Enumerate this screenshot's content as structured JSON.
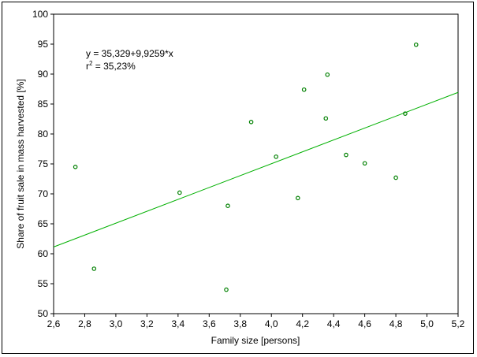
{
  "chart_data": {
    "type": "scatter",
    "xlabel": "Family size [persons]",
    "ylabel": "Share of fruit sale in mass harvested [%]",
    "xlim": [
      2.6,
      5.2
    ],
    "ylim": [
      50,
      100
    ],
    "x_ticks": [
      "2,6",
      "2,8",
      "3,0",
      "3,2",
      "3,4",
      "3,6",
      "3,8",
      "4,0",
      "4,2",
      "4,4",
      "4,6",
      "4,8",
      "5,0",
      "5,2"
    ],
    "y_ticks": [
      "50",
      "55",
      "60",
      "65",
      "70",
      "75",
      "80",
      "85",
      "90",
      "95",
      "100"
    ],
    "grid": false,
    "annotation": {
      "equation": "y = 35,329+9,9259*x",
      "r2_base": "r",
      "r2_sup": "2",
      "r2_rest": " = 35,23%"
    },
    "regression": {
      "intercept": 35.329,
      "slope": 9.9259
    },
    "marker_color": "#008000",
    "line_color": "#00b000",
    "points": [
      {
        "x": 2.74,
        "y": 74.5
      },
      {
        "x": 2.86,
        "y": 57.5
      },
      {
        "x": 3.41,
        "y": 70.2
      },
      {
        "x": 3.71,
        "y": 54.0
      },
      {
        "x": 3.72,
        "y": 68.0
      },
      {
        "x": 3.87,
        "y": 82.0
      },
      {
        "x": 4.03,
        "y": 76.2
      },
      {
        "x": 4.17,
        "y": 69.3
      },
      {
        "x": 4.21,
        "y": 87.4
      },
      {
        "x": 4.35,
        "y": 82.6
      },
      {
        "x": 4.36,
        "y": 89.9
      },
      {
        "x": 4.48,
        "y": 76.5
      },
      {
        "x": 4.6,
        "y": 75.1
      },
      {
        "x": 4.8,
        "y": 72.7
      },
      {
        "x": 4.86,
        "y": 83.4
      },
      {
        "x": 4.93,
        "y": 94.9
      }
    ]
  }
}
